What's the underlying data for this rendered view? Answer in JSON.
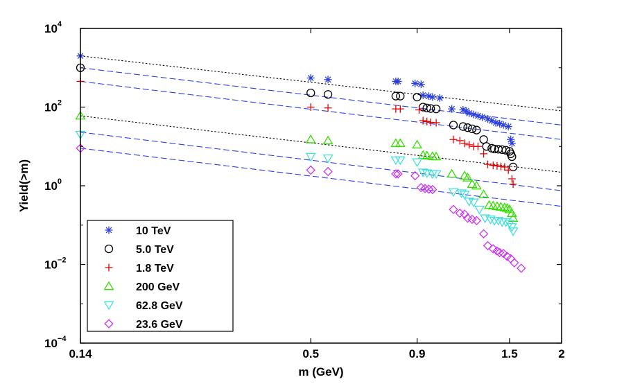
{
  "chart_data": {
    "type": "scatter",
    "title": "",
    "xlabel": "m (GeV)",
    "ylabel": "Yield(>m)",
    "xscale": "log",
    "yscale": "log",
    "xlim": [
      0.14,
      2
    ],
    "ylim": [
      0.0001,
      10000
    ],
    "x_ticks": [
      {
        "value": 0.14,
        "label": "0.14"
      },
      {
        "value": 0.5,
        "label": "0.5"
      },
      {
        "value": 0.9,
        "label": "0.9"
      },
      {
        "value": 1.5,
        "label": "1.5"
      },
      {
        "value": 2,
        "label": "2"
      }
    ],
    "y_ticks": [
      {
        "value": 0.0001,
        "base": "10",
        "exp": "−4"
      },
      {
        "value": 0.01,
        "base": "10",
        "exp": "−2"
      },
      {
        "value": 1,
        "base": "10",
        "exp": "0"
      },
      {
        "value": 100,
        "base": "10",
        "exp": "2"
      },
      {
        "value": 10000,
        "base": "10",
        "exp": "4"
      }
    ],
    "grid": false,
    "legend_position": "bottom-left",
    "series": [
      {
        "name": "10 TeV",
        "marker": "asterisk",
        "color": "#2b3fe0",
        "x": [
          0.14,
          0.5,
          0.55,
          0.8,
          0.81,
          0.89,
          0.92,
          0.93,
          0.96,
          0.98,
          1.02,
          1.09,
          1.16,
          1.18,
          1.2,
          1.23,
          1.26,
          1.29,
          1.33,
          1.36,
          1.39,
          1.42,
          1.45,
          1.49,
          1.51,
          1.52
        ],
        "y": [
          2000,
          550,
          500,
          450,
          450,
          400,
          380,
          200,
          190,
          180,
          170,
          90,
          85,
          80,
          70,
          65,
          60,
          55,
          50,
          45,
          40,
          38,
          35,
          32,
          15,
          12
        ]
      },
      {
        "name": "5.0 TeV",
        "marker": "circle",
        "color": "#000000",
        "x": [
          0.14,
          0.5,
          0.55,
          0.8,
          0.82,
          0.9,
          0.93,
          0.95,
          0.97,
          1.0,
          1.1,
          1.16,
          1.19,
          1.22,
          1.25,
          1.3,
          1.32,
          1.36,
          1.38,
          1.41,
          1.44,
          1.47,
          1.5,
          1.51,
          1.52,
          1.53
        ],
        "y": [
          1000,
          230,
          210,
          190,
          190,
          180,
          100,
          95,
          92,
          90,
          35,
          32,
          30,
          28,
          26,
          15,
          10,
          9,
          8.6,
          8.5,
          8.3,
          8.0,
          7.5,
          6.5,
          5.5,
          3.0
        ]
      },
      {
        "name": "1.8 TeV",
        "marker": "plus",
        "color": "#e00000",
        "x": [
          0.14,
          0.5,
          0.55,
          0.8,
          0.82,
          0.91,
          0.93,
          0.95,
          0.97,
          1.0,
          1.1,
          1.14,
          1.17,
          1.2,
          1.23,
          1.26,
          1.3,
          1.33,
          1.37,
          1.4,
          1.43,
          1.46,
          1.49,
          1.52,
          1.53
        ],
        "y": [
          450,
          100,
          95,
          90,
          90,
          85,
          45,
          43,
          41,
          40,
          15,
          14,
          12,
          11,
          10,
          10,
          6.5,
          3.5,
          3.3,
          3.2,
          3.1,
          3.0,
          2.5,
          1.5,
          1.1
        ]
      },
      {
        "name": "200 GeV",
        "marker": "triangle-up",
        "color": "#33dd00",
        "x": [
          0.14,
          0.5,
          0.55,
          0.8,
          0.82,
          0.9,
          0.93,
          0.95,
          0.98,
          1.0,
          1.09,
          1.17,
          1.19,
          1.22,
          1.25,
          1.3,
          1.34,
          1.37,
          1.4,
          1.43,
          1.46,
          1.48,
          1.5,
          1.52,
          1.53
        ],
        "y": [
          60,
          15,
          14,
          12,
          12,
          11,
          6.0,
          5.8,
          5.6,
          5.5,
          2.0,
          1.8,
          1.6,
          1.1,
          1.0,
          0.6,
          0.32,
          0.31,
          0.3,
          0.29,
          0.28,
          0.27,
          0.25,
          0.2,
          0.15
        ]
      },
      {
        "name": "62.8 GeV",
        "marker": "triangle-down",
        "color": "#44e0dd",
        "x": [
          0.14,
          0.5,
          0.55,
          0.8,
          0.82,
          0.9,
          0.93,
          0.95,
          0.98,
          1.0,
          1.1,
          1.15,
          1.17,
          1.2,
          1.23,
          1.27,
          1.31,
          1.35,
          1.38,
          1.41,
          1.44,
          1.47,
          1.5,
          1.52,
          1.53
        ],
        "y": [
          20,
          5.5,
          5.0,
          4.5,
          4.5,
          4.0,
          2.2,
          2.1,
          2.0,
          2.0,
          0.7,
          0.65,
          0.6,
          0.4,
          0.38,
          0.25,
          0.15,
          0.14,
          0.13,
          0.13,
          0.12,
          0.12,
          0.11,
          0.09,
          0.07
        ]
      },
      {
        "name": "23.6 GeV",
        "marker": "diamond",
        "color": "#cc33ee",
        "x": [
          0.14,
          0.5,
          0.55,
          0.8,
          0.81,
          0.89,
          0.92,
          0.94,
          0.96,
          0.98,
          1.1,
          1.14,
          1.17,
          1.19,
          1.22,
          1.25,
          1.3,
          1.33,
          1.37,
          1.4,
          1.42,
          1.45,
          1.48,
          1.51,
          1.54,
          1.6
        ],
        "y": [
          9,
          2.5,
          2.3,
          2.0,
          2.0,
          1.8,
          0.9,
          0.85,
          0.82,
          0.8,
          0.25,
          0.2,
          0.19,
          0.15,
          0.14,
          0.13,
          0.06,
          0.03,
          0.025,
          0.022,
          0.02,
          0.019,
          0.016,
          0.014,
          0.011,
          0.008
        ]
      }
    ],
    "fit_lines": [
      {
        "style": "dotted",
        "color": "#000000",
        "x": [
          0.14,
          2
        ],
        "y": [
          2000,
          80
        ]
      },
      {
        "style": "dashed",
        "color": "#2b3fe0",
        "x": [
          0.14,
          2
        ],
        "y": [
          1000,
          35
        ]
      },
      {
        "style": "dashed",
        "color": "#2b3fe0",
        "x": [
          0.14,
          2
        ],
        "y": [
          450,
          15
        ]
      },
      {
        "style": "dotted",
        "color": "#000000",
        "x": [
          0.14,
          2
        ],
        "y": [
          60,
          2.2
        ]
      },
      {
        "style": "dashed",
        "color": "#2b3fe0",
        "x": [
          0.14,
          2
        ],
        "y": [
          23,
          0.75
        ]
      },
      {
        "style": "dashed",
        "color": "#2b3fe0",
        "x": [
          0.14,
          2
        ],
        "y": [
          9,
          0.3
        ]
      }
    ]
  }
}
